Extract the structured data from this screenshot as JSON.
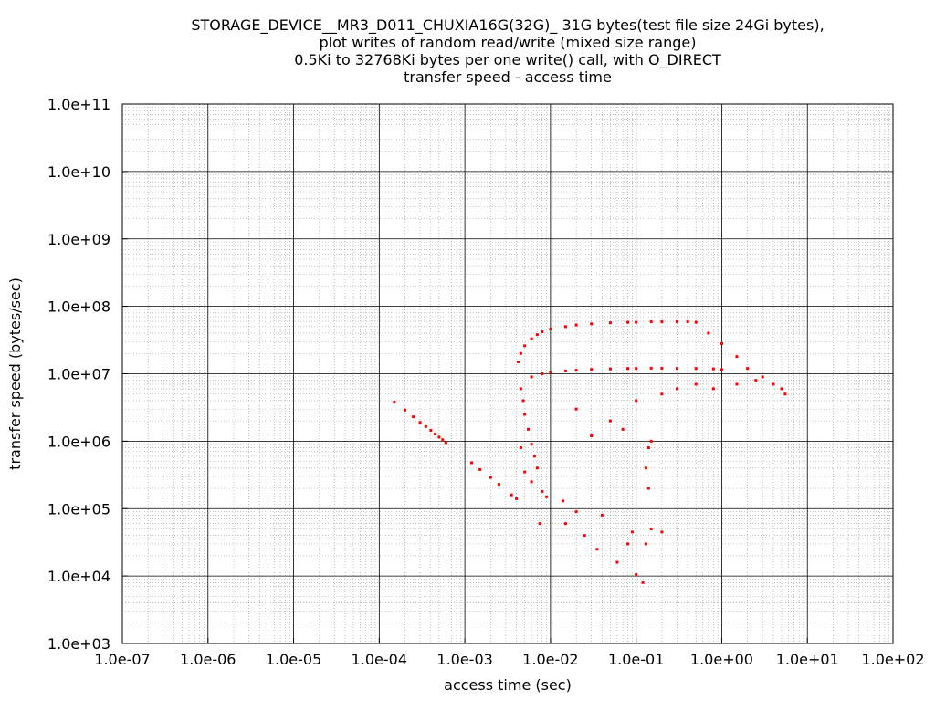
{
  "chart_data": {
    "type": "scatter",
    "title": [
      "STORAGE_DEVICE__MR3_D011_CHUXIA16G(32G)_ 31G bytes(test file size 24Gi bytes),",
      "plot writes of random read/write (mixed size range)",
      "0.5Ki to 32768Ki bytes per one write() call, with O_DIRECT",
      "transfer speed - access time"
    ],
    "xlabel": "access time (sec)",
    "ylabel": "transfer speed (bytes/sec)",
    "x_scale": "log",
    "y_scale": "log",
    "xlim": [
      1e-07,
      100
    ],
    "ylim": [
      1000,
      100000000000.0
    ],
    "x_tick_labels": [
      "1.0e-07",
      "1.0e-06",
      "1.0e-05",
      "1.0e-04",
      "1.0e-03",
      "1.0e-02",
      "1.0e-01",
      "1.0e+00",
      "1.0e+01",
      "1.0e+02"
    ],
    "y_tick_labels": [
      "1.0e+03",
      "1.0e+04",
      "1.0e+05",
      "1.0e+06",
      "1.0e+07",
      "1.0e+08",
      "1.0e+09",
      "1.0e+10",
      "1.0e+11"
    ],
    "grid": true,
    "marker_color": "#ff0000",
    "series": [
      {
        "points": [
          [
            0.00015,
            3800000
          ],
          [
            0.0002,
            2900000
          ],
          [
            0.00025,
            2300000
          ],
          [
            0.0003,
            1900000
          ],
          [
            0.00035,
            1650000
          ],
          [
            0.0004,
            1450000
          ],
          [
            0.00045,
            1280000
          ],
          [
            0.0005,
            1150000
          ],
          [
            0.00055,
            1050000
          ],
          [
            0.0006,
            950000
          ],
          [
            0.0012,
            480000
          ],
          [
            0.0015,
            380000
          ],
          [
            0.002,
            290000
          ],
          [
            0.0025,
            230000
          ],
          [
            0.0035,
            160000
          ],
          [
            0.004,
            140000
          ],
          [
            0.0042,
            15000000
          ],
          [
            0.0045,
            20000000
          ],
          [
            0.005,
            26000000
          ],
          [
            0.006,
            33000000
          ],
          [
            0.007,
            38000000
          ],
          [
            0.008,
            42000000
          ],
          [
            0.01,
            46000000
          ],
          [
            0.015,
            50000000
          ],
          [
            0.02,
            53000000
          ],
          [
            0.03,
            55000000
          ],
          [
            0.05,
            57000000
          ],
          [
            0.08,
            58000000
          ],
          [
            0.1,
            58000000
          ],
          [
            0.15,
            59000000
          ],
          [
            0.2,
            59000000
          ],
          [
            0.3,
            59000000
          ],
          [
            0.4,
            59000000
          ],
          [
            0.5,
            58000000
          ],
          [
            0.006,
            9000000
          ],
          [
            0.008,
            10000000
          ],
          [
            0.01,
            10500000
          ],
          [
            0.015,
            11000000
          ],
          [
            0.02,
            11300000
          ],
          [
            0.03,
            11600000
          ],
          [
            0.05,
            11800000
          ],
          [
            0.08,
            12000000
          ],
          [
            0.1,
            12000000
          ],
          [
            0.15,
            12100000
          ],
          [
            0.2,
            12100000
          ],
          [
            0.3,
            12000000
          ],
          [
            0.5,
            12000000
          ],
          [
            0.8,
            11800000
          ],
          [
            1.0,
            11500000
          ],
          [
            0.7,
            40000000
          ],
          [
            1.0,
            28000000
          ],
          [
            1.5,
            18000000
          ],
          [
            2.0,
            12000000
          ],
          [
            3.0,
            9000000
          ],
          [
            4.0,
            7000000
          ],
          [
            5.0,
            6000000
          ],
          [
            5.5,
            5000000
          ],
          [
            0.0045,
            6000000
          ],
          [
            0.0048,
            4000000
          ],
          [
            0.005,
            2500000
          ],
          [
            0.0055,
            1500000
          ],
          [
            0.006,
            900000
          ],
          [
            0.0065,
            600000
          ],
          [
            0.007,
            400000
          ],
          [
            0.0045,
            800000
          ],
          [
            0.005,
            350000
          ],
          [
            0.006,
            250000
          ],
          [
            0.008,
            180000
          ],
          [
            0.009,
            150000
          ],
          [
            0.0075,
            60000
          ],
          [
            0.014,
            130000
          ],
          [
            0.015,
            60000
          ],
          [
            0.02,
            90000
          ],
          [
            0.025,
            40000
          ],
          [
            0.035,
            25000
          ],
          [
            0.04,
            80000
          ],
          [
            0.06,
            16000
          ],
          [
            0.08,
            30000
          ],
          [
            0.09,
            45000
          ],
          [
            0.1,
            10500
          ],
          [
            0.12,
            8000
          ],
          [
            0.13,
            30000
          ],
          [
            0.14,
            200000
          ],
          [
            0.15,
            50000
          ],
          [
            0.2,
            45000
          ],
          [
            0.14,
            800000
          ],
          [
            0.13,
            400000
          ],
          [
            0.15,
            1000000
          ],
          [
            0.02,
            3000000
          ],
          [
            0.03,
            1200000
          ],
          [
            0.05,
            2000000
          ],
          [
            0.07,
            1500000
          ],
          [
            0.1,
            4000000
          ],
          [
            0.2,
            5000000
          ],
          [
            0.3,
            6000000
          ],
          [
            0.5,
            7000000
          ],
          [
            0.8,
            6000000
          ],
          [
            1.5,
            7000000
          ],
          [
            2.5,
            8000000
          ]
        ]
      }
    ]
  }
}
